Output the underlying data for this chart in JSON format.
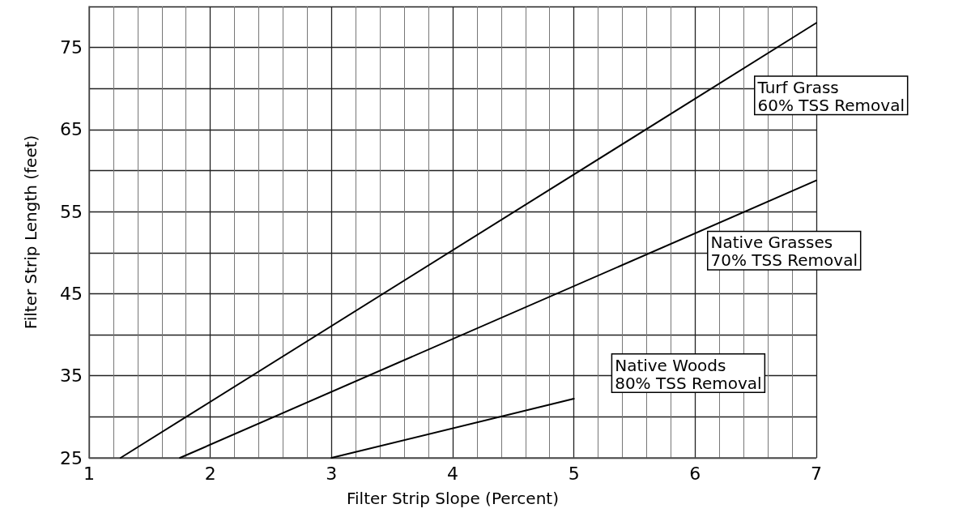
{
  "chart_data": {
    "type": "line",
    "xlabel": "Filter Strip Slope (Percent)",
    "ylabel": "Filter Strip Length (feet)",
    "xlim": [
      1,
      7
    ],
    "xticks": [
      1,
      2,
      3,
      4,
      5,
      6,
      7
    ],
    "ylim": [
      25,
      80
    ],
    "yticks": [
      25,
      {
        "value": 30,
        "label": null
      },
      35,
      {
        "value": 40,
        "label": null
      },
      45,
      {
        "value": 50,
        "label": null
      },
      55,
      {
        "value": 60,
        "label": null
      },
      65,
      {
        "value": 70,
        "label": null
      },
      75,
      {
        "value": 80,
        "label": null
      }
    ],
    "grid": true,
    "marker": "none",
    "line_style": "solid",
    "series": [
      {
        "name": "Turf Grass\n60% TSS Removal",
        "color": "#000000",
        "x": [
          1.26,
          7
        ],
        "values": [
          25,
          78
        ]
      },
      {
        "name": "Native Grasses\n70% TSS Removal",
        "color": "#000000",
        "x": [
          1.75,
          7
        ],
        "values": [
          25,
          58.8
        ]
      },
      {
        "name": "Native Woods\n80% TSS Removal",
        "color": "#000000",
        "x": [
          3,
          5
        ],
        "values": [
          25,
          32.2
        ]
      }
    ]
  }
}
